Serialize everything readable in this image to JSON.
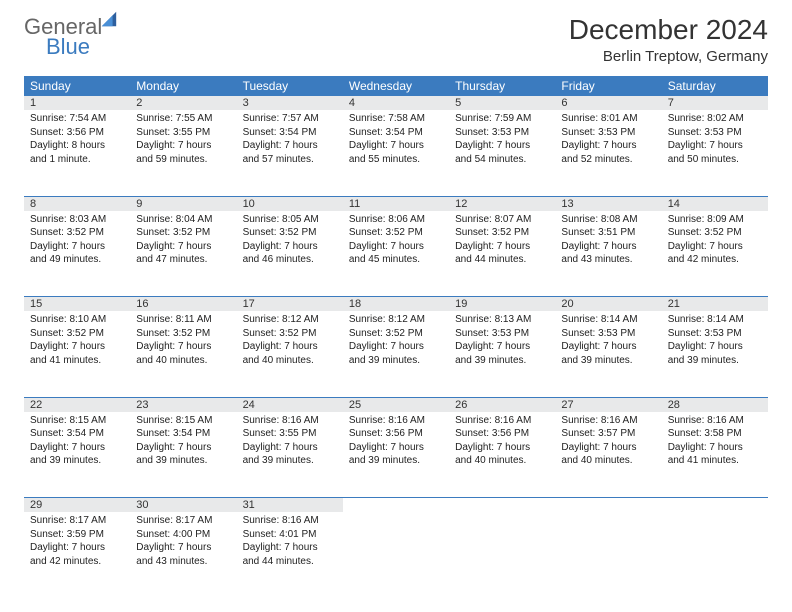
{
  "brand": {
    "general": "General",
    "blue": "Blue"
  },
  "title": "December 2024",
  "subtitle": "Berlin Treptow, Germany",
  "colors": {
    "header_bg": "#3b7bbf",
    "header_text": "#ffffff",
    "daynum_bg": "#e8e9ea",
    "border": "#3b7bbf",
    "text": "#222222"
  },
  "weekdays": [
    "Sunday",
    "Monday",
    "Tuesday",
    "Wednesday",
    "Thursday",
    "Friday",
    "Saturday"
  ],
  "weeks": [
    [
      {
        "n": "1",
        "sr": "7:54 AM",
        "ss": "3:56 PM",
        "dl": "8 hours and 1 minute."
      },
      {
        "n": "2",
        "sr": "7:55 AM",
        "ss": "3:55 PM",
        "dl": "7 hours and 59 minutes."
      },
      {
        "n": "3",
        "sr": "7:57 AM",
        "ss": "3:54 PM",
        "dl": "7 hours and 57 minutes."
      },
      {
        "n": "4",
        "sr": "7:58 AM",
        "ss": "3:54 PM",
        "dl": "7 hours and 55 minutes."
      },
      {
        "n": "5",
        "sr": "7:59 AM",
        "ss": "3:53 PM",
        "dl": "7 hours and 54 minutes."
      },
      {
        "n": "6",
        "sr": "8:01 AM",
        "ss": "3:53 PM",
        "dl": "7 hours and 52 minutes."
      },
      {
        "n": "7",
        "sr": "8:02 AM",
        "ss": "3:53 PM",
        "dl": "7 hours and 50 minutes."
      }
    ],
    [
      {
        "n": "8",
        "sr": "8:03 AM",
        "ss": "3:52 PM",
        "dl": "7 hours and 49 minutes."
      },
      {
        "n": "9",
        "sr": "8:04 AM",
        "ss": "3:52 PM",
        "dl": "7 hours and 47 minutes."
      },
      {
        "n": "10",
        "sr": "8:05 AM",
        "ss": "3:52 PM",
        "dl": "7 hours and 46 minutes."
      },
      {
        "n": "11",
        "sr": "8:06 AM",
        "ss": "3:52 PM",
        "dl": "7 hours and 45 minutes."
      },
      {
        "n": "12",
        "sr": "8:07 AM",
        "ss": "3:52 PM",
        "dl": "7 hours and 44 minutes."
      },
      {
        "n": "13",
        "sr": "8:08 AM",
        "ss": "3:51 PM",
        "dl": "7 hours and 43 minutes."
      },
      {
        "n": "14",
        "sr": "8:09 AM",
        "ss": "3:52 PM",
        "dl": "7 hours and 42 minutes."
      }
    ],
    [
      {
        "n": "15",
        "sr": "8:10 AM",
        "ss": "3:52 PM",
        "dl": "7 hours and 41 minutes."
      },
      {
        "n": "16",
        "sr": "8:11 AM",
        "ss": "3:52 PM",
        "dl": "7 hours and 40 minutes."
      },
      {
        "n": "17",
        "sr": "8:12 AM",
        "ss": "3:52 PM",
        "dl": "7 hours and 40 minutes."
      },
      {
        "n": "18",
        "sr": "8:12 AM",
        "ss": "3:52 PM",
        "dl": "7 hours and 39 minutes."
      },
      {
        "n": "19",
        "sr": "8:13 AM",
        "ss": "3:53 PM",
        "dl": "7 hours and 39 minutes."
      },
      {
        "n": "20",
        "sr": "8:14 AM",
        "ss": "3:53 PM",
        "dl": "7 hours and 39 minutes."
      },
      {
        "n": "21",
        "sr": "8:14 AM",
        "ss": "3:53 PM",
        "dl": "7 hours and 39 minutes."
      }
    ],
    [
      {
        "n": "22",
        "sr": "8:15 AM",
        "ss": "3:54 PM",
        "dl": "7 hours and 39 minutes."
      },
      {
        "n": "23",
        "sr": "8:15 AM",
        "ss": "3:54 PM",
        "dl": "7 hours and 39 minutes."
      },
      {
        "n": "24",
        "sr": "8:16 AM",
        "ss": "3:55 PM",
        "dl": "7 hours and 39 minutes."
      },
      {
        "n": "25",
        "sr": "8:16 AM",
        "ss": "3:56 PM",
        "dl": "7 hours and 39 minutes."
      },
      {
        "n": "26",
        "sr": "8:16 AM",
        "ss": "3:56 PM",
        "dl": "7 hours and 40 minutes."
      },
      {
        "n": "27",
        "sr": "8:16 AM",
        "ss": "3:57 PM",
        "dl": "7 hours and 40 minutes."
      },
      {
        "n": "28",
        "sr": "8:16 AM",
        "ss": "3:58 PM",
        "dl": "7 hours and 41 minutes."
      }
    ],
    [
      {
        "n": "29",
        "sr": "8:17 AM",
        "ss": "3:59 PM",
        "dl": "7 hours and 42 minutes."
      },
      {
        "n": "30",
        "sr": "8:17 AM",
        "ss": "4:00 PM",
        "dl": "7 hours and 43 minutes."
      },
      {
        "n": "31",
        "sr": "8:16 AM",
        "ss": "4:01 PM",
        "dl": "7 hours and 44 minutes."
      },
      null,
      null,
      null,
      null
    ]
  ],
  "labels": {
    "sunrise": "Sunrise:",
    "sunset": "Sunset:",
    "daylight": "Daylight:"
  }
}
